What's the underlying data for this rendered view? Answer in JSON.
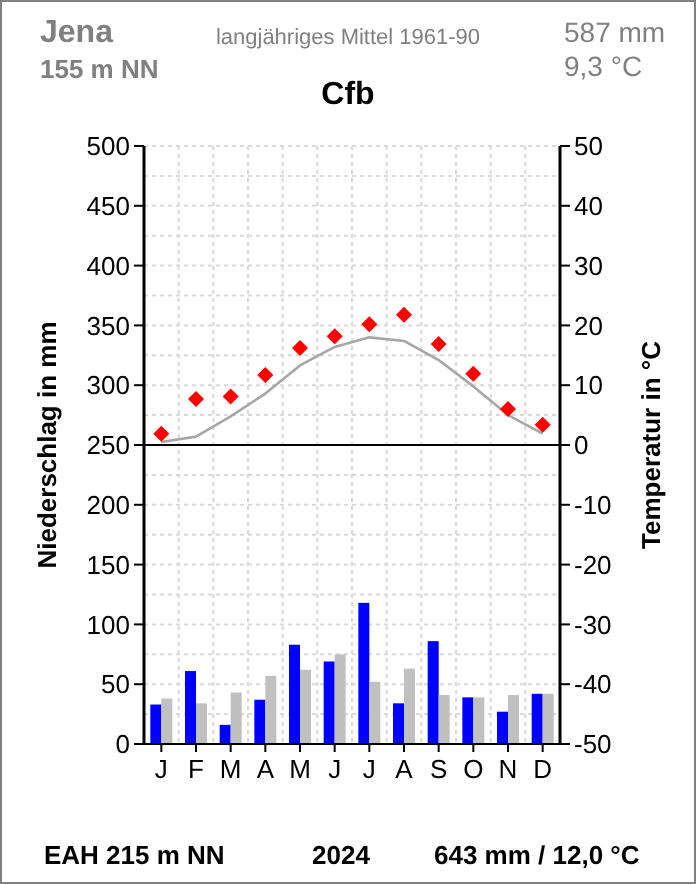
{
  "chart_data": {
    "type": "bar",
    "title": "Cfb",
    "subtitle": "langjähriges Mittel 1961-90",
    "annotations": [
      "Jena",
      "155 m NN",
      "587 mm",
      "9,3 °C",
      "EAH  215 m NN",
      "2024",
      "643 mm / 12,0  °C"
    ],
    "categories": [
      "J",
      "F",
      "M",
      "A",
      "M",
      "J",
      "J",
      "A",
      "S",
      "O",
      "N",
      "D"
    ],
    "ylabel": "Niederschlag in mm",
    "y2label": "Temperatur in °C",
    "ylim": [
      0,
      500
    ],
    "yticks": [
      0,
      50,
      100,
      150,
      200,
      250,
      300,
      350,
      400,
      450,
      500
    ],
    "y2lim": [
      -50,
      50
    ],
    "y2ticks": [
      -50,
      -40,
      -30,
      -20,
      -10,
      0,
      10,
      20,
      30,
      40,
      50
    ],
    "grid": true,
    "ref_lines": [
      {
        "axis": "y2",
        "value": 0,
        "color": "#000000"
      }
    ],
    "series": [
      {
        "color": "#0000ff",
        "values": [
          33,
          61,
          16,
          37,
          83,
          69,
          118,
          34,
          86,
          39,
          27,
          42
        ]
      },
      {
        "color": "#c0c0c0",
        "values": [
          38,
          34,
          43,
          57,
          62,
          75,
          52,
          63,
          41,
          39,
          41,
          42
        ]
      },
      {
        "type": "line",
        "axis": "y2",
        "color": "#a6a6a6",
        "marker": "none",
        "values": [
          0.5,
          1.4,
          4.8,
          8.6,
          13.3,
          16.4,
          18.0,
          17.4,
          14.2,
          9.8,
          5.0,
          1.9
        ]
      },
      {
        "type": "scatter",
        "axis": "y2",
        "color": "#ff0000",
        "marker": "diamond",
        "values": [
          1.9,
          7.7,
          8.1,
          11.7,
          16.2,
          18.2,
          20.2,
          21.8,
          16.9,
          11.9,
          6.0,
          3.4
        ]
      }
    ]
  }
}
